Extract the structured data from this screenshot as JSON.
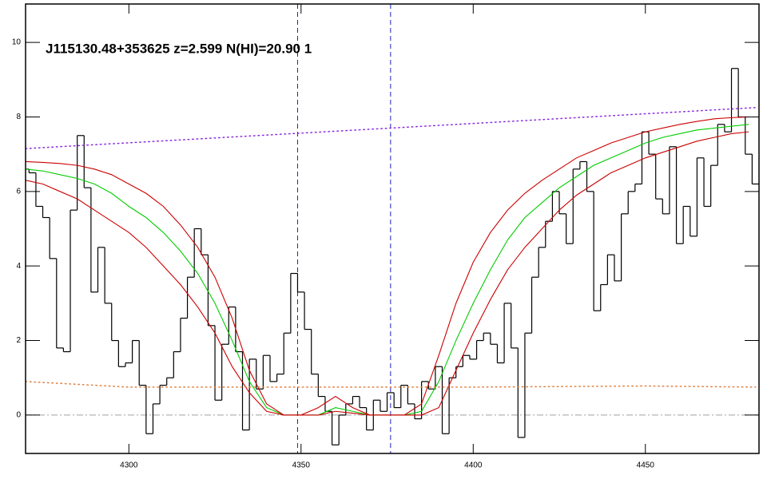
{
  "chart_data": {
    "type": "line",
    "annotation": "J115130.48+353625 z=2.599 N(HI)=20.90 1",
    "xlim": [
      4270,
      4483
    ],
    "ylim": [
      -1.03,
      11.03
    ],
    "xticks": [
      4300,
      4350,
      4400,
      4450
    ],
    "yticks": [
      0,
      2,
      4,
      6,
      8,
      10
    ],
    "vlines": [
      4349,
      4376
    ],
    "vline_color": "#2020c0",
    "hlines": [
      0
    ],
    "hline_color": "#a0a0a0",
    "series": [
      {
        "style": "step",
        "color": "#000000",
        "x": [
          4270,
          4272,
          4274,
          4276,
          4278,
          4280,
          4282,
          4284,
          4286,
          4288,
          4290,
          4292,
          4294,
          4296,
          4298,
          4300,
          4302,
          4304,
          4306,
          4308,
          4310,
          4312,
          4314,
          4316,
          4318,
          4320,
          4322,
          4324,
          4326,
          4328,
          4330,
          4332,
          4334,
          4336,
          4338,
          4340,
          4342,
          4344,
          4346,
          4348,
          4350,
          4352,
          4354,
          4356,
          4358,
          4360,
          4362,
          4364,
          4366,
          4368,
          4370,
          4372,
          4374,
          4376,
          4378,
          4380,
          4382,
          4384,
          4386,
          4388,
          4390,
          4392,
          4394,
          4396,
          4398,
          4400,
          4402,
          4404,
          4406,
          4408,
          4410,
          4412,
          4414,
          4416,
          4418,
          4420,
          4422,
          4424,
          4426,
          4428,
          4430,
          4432,
          4434,
          4436,
          4438,
          4440,
          4442,
          4444,
          4446,
          4448,
          4450,
          4452,
          4454,
          4456,
          4458,
          4460,
          4462,
          4464,
          4466,
          4468,
          4470,
          4472,
          4474,
          4476,
          4478,
          4480,
          4482
        ],
        "values": [
          6.6,
          6.5,
          5.6,
          5.3,
          4.2,
          1.8,
          1.7,
          5.5,
          7.5,
          6.1,
          3.3,
          4.5,
          3.0,
          2.0,
          1.3,
          1.4,
          2.0,
          0.8,
          -0.5,
          0.3,
          0.8,
          1.0,
          1.7,
          2.6,
          3.7,
          5.0,
          4.3,
          2.4,
          0.4,
          1.9,
          2.9,
          1.7,
          -0.4,
          1.5,
          0.7,
          1.6,
          0.9,
          1.1,
          2.2,
          3.8,
          3.3,
          2.3,
          1.1,
          0.5,
          0.1,
          -0.8,
          0.0,
          0.3,
          0.5,
          0.2,
          -0.4,
          0.4,
          0.1,
          0.6,
          0.2,
          0.8,
          0.3,
          -0.1,
          0.9,
          0.7,
          1.3,
          -0.5,
          1.0,
          1.3,
          1.6,
          1.5,
          2.0,
          2.2,
          1.9,
          1.4,
          3.0,
          1.8,
          -0.6,
          2.2,
          3.7,
          4.5,
          5.2,
          6.0,
          5.4,
          4.6,
          6.6,
          6.8,
          6.0,
          2.8,
          3.5,
          4.3,
          3.6,
          5.4,
          6.0,
          6.2,
          7.6,
          7.0,
          5.8,
          5.4,
          7.2,
          4.6,
          5.6,
          4.8,
          6.9,
          5.6,
          6.7,
          7.8,
          7.6,
          9.3,
          8.0,
          7.0,
          6.2
        ]
      },
      {
        "style": "solid",
        "color": "#00cc00",
        "x": [
          4270,
          4275,
          4280,
          4285,
          4290,
          4295,
          4300,
          4305,
          4310,
          4315,
          4320,
          4325,
          4330,
          4335,
          4340,
          4345,
          4350,
          4355,
          4360,
          4365,
          4370,
          4375,
          4380,
          4385,
          4390,
          4395,
          4400,
          4405,
          4410,
          4415,
          4420,
          4425,
          4430,
          4435,
          4440,
          4445,
          4450,
          4455,
          4460,
          4465,
          4470,
          4475,
          4480
        ],
        "values": [
          6.6,
          6.55,
          6.45,
          6.35,
          6.2,
          5.95,
          5.6,
          5.3,
          4.9,
          4.4,
          3.8,
          3.0,
          2.0,
          0.9,
          0.2,
          0,
          0,
          0,
          0.2,
          0.1,
          0,
          0,
          0,
          0.1,
          0.9,
          2.0,
          3.0,
          3.9,
          4.7,
          5.3,
          5.7,
          6.1,
          6.4,
          6.7,
          6.9,
          7.1,
          7.3,
          7.45,
          7.55,
          7.65,
          7.7,
          7.75,
          7.8
        ]
      },
      {
        "style": "solid",
        "color": "#cc0000",
        "x": [
          4270,
          4275,
          4280,
          4285,
          4290,
          4295,
          4300,
          4305,
          4310,
          4315,
          4320,
          4325,
          4330,
          4335,
          4340,
          4345,
          4350,
          4355,
          4360,
          4365,
          4370,
          4375,
          4380,
          4385,
          4390,
          4395,
          4400,
          4405,
          4410,
          4415,
          4420,
          4425,
          4430,
          4435,
          4440,
          4445,
          4450,
          4455,
          4460,
          4465,
          4470,
          4475,
          4480
        ],
        "values": [
          6.8,
          6.78,
          6.75,
          6.7,
          6.6,
          6.45,
          6.2,
          5.95,
          5.6,
          5.1,
          4.5,
          3.7,
          2.6,
          1.2,
          0.3,
          0,
          0,
          0.2,
          0.5,
          0.2,
          0,
          0,
          0,
          0.3,
          1.6,
          3.0,
          4.1,
          4.9,
          5.5,
          5.95,
          6.3,
          6.6,
          6.9,
          7.1,
          7.3,
          7.45,
          7.6,
          7.7,
          7.8,
          7.88,
          7.95,
          7.98,
          8.0
        ]
      },
      {
        "style": "solid",
        "color": "#cc0000",
        "x": [
          4270,
          4275,
          4280,
          4285,
          4290,
          4295,
          4300,
          4305,
          4310,
          4315,
          4320,
          4325,
          4330,
          4335,
          4340,
          4345,
          4350,
          4355,
          4360,
          4365,
          4370,
          4375,
          4380,
          4385,
          4390,
          4395,
          4400,
          4405,
          4410,
          4415,
          4420,
          4425,
          4430,
          4435,
          4440,
          4445,
          4450,
          4455,
          4460,
          4465,
          4470,
          4475,
          4480
        ],
        "values": [
          6.3,
          6.2,
          6.0,
          5.8,
          5.5,
          5.2,
          4.9,
          4.5,
          4.0,
          3.5,
          2.9,
          2.2,
          1.3,
          0.6,
          0.1,
          0,
          0,
          0,
          0.1,
          0.05,
          0,
          0,
          0,
          0,
          0.2,
          1.2,
          2.2,
          3.1,
          3.9,
          4.5,
          5.0,
          5.5,
          5.9,
          6.2,
          6.5,
          6.7,
          6.9,
          7.05,
          7.2,
          7.35,
          7.45,
          7.55,
          7.6
        ]
      },
      {
        "style": "dotted",
        "color": "#8a2be2",
        "x": [
          4270,
          4482
        ],
        "values": [
          7.15,
          8.25
        ]
      },
      {
        "style": "dotted",
        "color": "#e08040",
        "x": [
          4270,
          4300,
          4350,
          4400,
          4450,
          4482
        ],
        "values": [
          0.9,
          0.75,
          0.75,
          0.75,
          0.78,
          0.75
        ]
      }
    ]
  }
}
